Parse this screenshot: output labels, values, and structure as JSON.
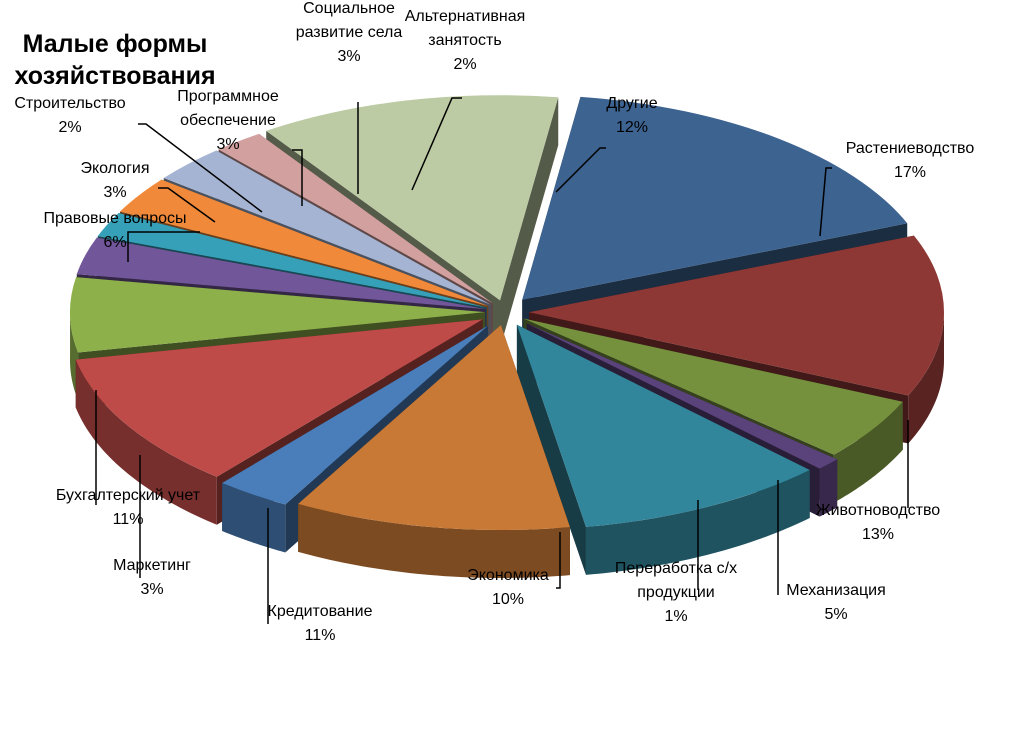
{
  "chart_data": {
    "type": "pie",
    "title": "Малые формы хозяйствования",
    "title_lines": [
      "Малые формы",
      "хозяйствования"
    ],
    "labels_shown_as_percent": true,
    "slices": [
      {
        "name": "Растениеводство",
        "name_lines": [
          "Растениеводство"
        ],
        "value": 17,
        "pct": "17%",
        "color": "#3d6391"
      },
      {
        "name": "Животноводство",
        "name_lines": [
          "Животноводство"
        ],
        "value": 13,
        "pct": "13%",
        "color": "#8e3835"
      },
      {
        "name": "Механизация",
        "name_lines": [
          "Механизация"
        ],
        "value": 5,
        "pct": "5%",
        "color": "#76913e"
      },
      {
        "name": "Переработка с/х продукции",
        "name_lines": [
          "Переработка с/х",
          "продукции"
        ],
        "value": 1,
        "pct": "1%",
        "color": "#5a427a"
      },
      {
        "name": "Экономика",
        "name_lines": [
          "Экономика"
        ],
        "value": 10,
        "pct": "10%",
        "color": "#32869b"
      },
      {
        "name": "Кредитование",
        "name_lines": [
          "Кредитование"
        ],
        "value": 11,
        "pct": "11%",
        "color": "#c87935"
      },
      {
        "name": "Маркетинг",
        "name_lines": [
          "Маркетинг"
        ],
        "value": 3,
        "pct": "3%",
        "color": "#4a7ebb"
      },
      {
        "name": "Бухгалтерский учет",
        "name_lines": [
          "Бухгалтерский учет"
        ],
        "value": 11,
        "pct": "11%",
        "color": "#be4b48"
      },
      {
        "name": "Правовые вопросы",
        "name_lines": [
          "Правовые вопросы"
        ],
        "value": 6,
        "pct": "6%",
        "color": "#8db04b"
      },
      {
        "name": "Экология",
        "name_lines": [
          "Экология"
        ],
        "value": 3,
        "pct": "3%",
        "color": "#71569a"
      },
      {
        "name": "Строительство",
        "name_lines": [
          "Строительство"
        ],
        "value": 2,
        "pct": "2%",
        "color": "#35a0b8"
      },
      {
        "name": "Программное обеспечение",
        "name_lines": [
          "Программное",
          "обеспечение"
        ],
        "value": 3,
        "pct": "3%",
        "color": "#f08a3a"
      },
      {
        "name": "Социальное развитие села",
        "name_lines": [
          "Социальное",
          "развитие села"
        ],
        "value": 3,
        "pct": "3%",
        "color": "#a5b4d2"
      },
      {
        "name": "Альтернативная занятость",
        "name_lines": [
          "Альтернативная",
          "занятость"
        ],
        "value": 2,
        "pct": "2%",
        "color": "#d3a0a0"
      },
      {
        "name": "Другие",
        "name_lines": [
          "Другие"
        ],
        "value": 12,
        "pct": "12%",
        "color": "#bccba3"
      }
    ]
  }
}
